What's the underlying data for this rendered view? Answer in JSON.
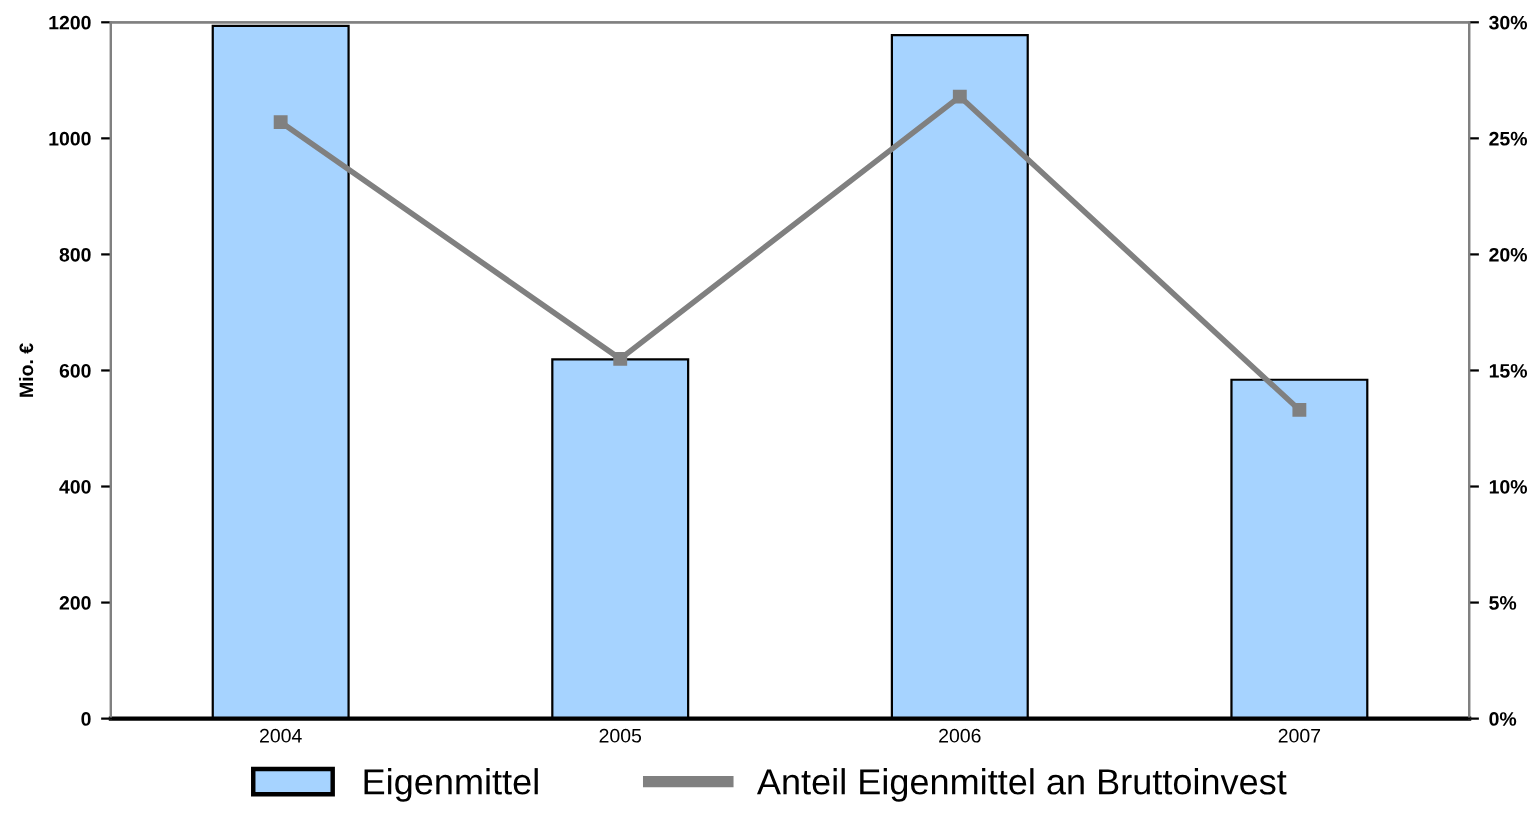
{
  "chart_data": {
    "type": "bar",
    "ylabel": "Mio. €",
    "categories": [
      "2004",
      "2005",
      "2006",
      "2007"
    ],
    "series": [
      {
        "name": "Eigenmittel",
        "color": "#a6d3ff",
        "values": [
          1194,
          619,
          1178,
          584
        ]
      },
      {
        "name": "Anteil Eigenmittel an Bruttoinvest",
        "type": "line",
        "axis": "y2",
        "color": "#808080",
        "marker": "square",
        "values": [
          25.7,
          15.5,
          26.8,
          13.3
        ]
      }
    ],
    "ylim": [
      0,
      1200
    ],
    "yticks": [
      0,
      200,
      400,
      600,
      800,
      1000,
      1200
    ],
    "y2lim": [
      0,
      30
    ],
    "y2ticks": [
      {
        "value": 0,
        "label": "0%"
      },
      {
        "value": 5,
        "label": "5%"
      },
      {
        "value": 10,
        "label": "10%"
      },
      {
        "value": 15,
        "label": "15%"
      },
      {
        "value": 20,
        "label": "20%"
      },
      {
        "value": 25,
        "label": "25%"
      },
      {
        "value": 30,
        "label": "30%"
      }
    ],
    "grid": false,
    "legend": "bottom"
  }
}
